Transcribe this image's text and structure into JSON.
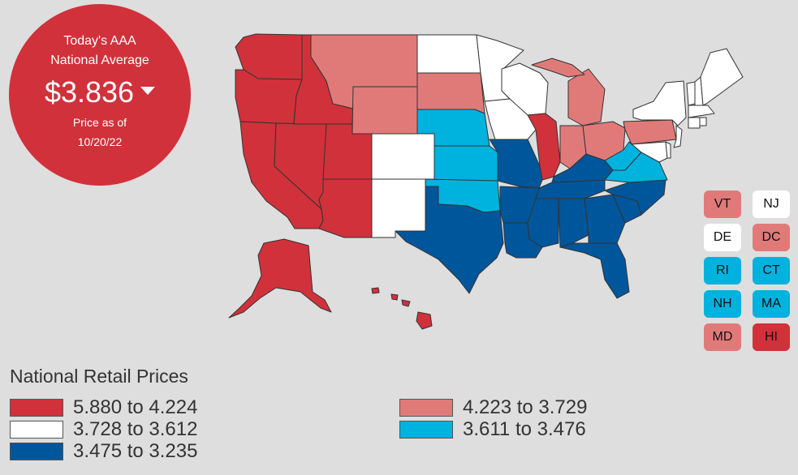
{
  "badge": {
    "line1": "Today's AAA",
    "line2": "National Average",
    "price": "$3.836",
    "price_as_of_label": "Price as of",
    "date": "10/20/22"
  },
  "colors": {
    "high": "#d1313a",
    "mid_high": "#e07a79",
    "mid": "#ffffff",
    "mid_low": "#00b2de",
    "low": "#00569b",
    "border": "#333333"
  },
  "small_states": [
    {
      "abbr": "VT",
      "bin": "mid_high"
    },
    {
      "abbr": "NJ",
      "bin": "mid"
    },
    {
      "abbr": "DE",
      "bin": "mid"
    },
    {
      "abbr": "DC",
      "bin": "mid_high"
    },
    {
      "abbr": "RI",
      "bin": "mid_low"
    },
    {
      "abbr": "CT",
      "bin": "mid_low"
    },
    {
      "abbr": "NH",
      "bin": "mid_low"
    },
    {
      "abbr": "MA",
      "bin": "mid_low"
    },
    {
      "abbr": "MD",
      "bin": "mid_high"
    },
    {
      "abbr": "HI",
      "bin": "high"
    }
  ],
  "legend": {
    "title": "National Retail Prices",
    "items": [
      {
        "label": "5.880 to 4.224",
        "bin": "high"
      },
      {
        "label": "3.728 to 3.612",
        "bin": "mid"
      },
      {
        "label": "3.475 to 3.235",
        "bin": "low"
      },
      {
        "label": "4.223 to 3.729",
        "bin": "mid_high"
      },
      {
        "label": "3.611 to 3.476",
        "bin": "mid_low"
      }
    ]
  },
  "map_states": [
    {
      "abbr": "WA",
      "bin": "high"
    },
    {
      "abbr": "OR",
      "bin": "high"
    },
    {
      "abbr": "CA",
      "bin": "high"
    },
    {
      "abbr": "NV",
      "bin": "high"
    },
    {
      "abbr": "ID",
      "bin": "high"
    },
    {
      "abbr": "AZ",
      "bin": "high"
    },
    {
      "abbr": "UT",
      "bin": "high"
    },
    {
      "abbr": "AK",
      "bin": "high"
    },
    {
      "abbr": "IL",
      "bin": "high"
    },
    {
      "abbr": "HI",
      "bin": "high"
    },
    {
      "abbr": "MT",
      "bin": "mid_high"
    },
    {
      "abbr": "WY",
      "bin": "mid_high"
    },
    {
      "abbr": "SD",
      "bin": "mid_high"
    },
    {
      "abbr": "MI",
      "bin": "mid_high"
    },
    {
      "abbr": "IN",
      "bin": "mid_high"
    },
    {
      "abbr": "OH",
      "bin": "mid_high"
    },
    {
      "abbr": "PA",
      "bin": "mid_high"
    },
    {
      "abbr": "ND",
      "bin": "mid"
    },
    {
      "abbr": "MN",
      "bin": "mid"
    },
    {
      "abbr": "WI",
      "bin": "mid"
    },
    {
      "abbr": "IA",
      "bin": "mid"
    },
    {
      "abbr": "CO",
      "bin": "mid"
    },
    {
      "abbr": "NM",
      "bin": "mid"
    },
    {
      "abbr": "NY",
      "bin": "mid"
    },
    {
      "abbr": "ME",
      "bin": "mid"
    },
    {
      "abbr": "NE",
      "bin": "mid_low"
    },
    {
      "abbr": "KS",
      "bin": "mid_low"
    },
    {
      "abbr": "OK",
      "bin": "mid_low"
    },
    {
      "abbr": "VA",
      "bin": "mid_low"
    },
    {
      "abbr": "WV",
      "bin": "mid_low"
    },
    {
      "abbr": "TX",
      "bin": "low"
    },
    {
      "abbr": "MO",
      "bin": "low"
    },
    {
      "abbr": "AR",
      "bin": "low"
    },
    {
      "abbr": "LA",
      "bin": "low"
    },
    {
      "abbr": "MS",
      "bin": "low"
    },
    {
      "abbr": "AL",
      "bin": "low"
    },
    {
      "abbr": "GA",
      "bin": "low"
    },
    {
      "abbr": "FL",
      "bin": "low"
    },
    {
      "abbr": "SC",
      "bin": "low"
    },
    {
      "abbr": "NC",
      "bin": "low"
    },
    {
      "abbr": "TN",
      "bin": "low"
    },
    {
      "abbr": "KY",
      "bin": "low"
    }
  ]
}
